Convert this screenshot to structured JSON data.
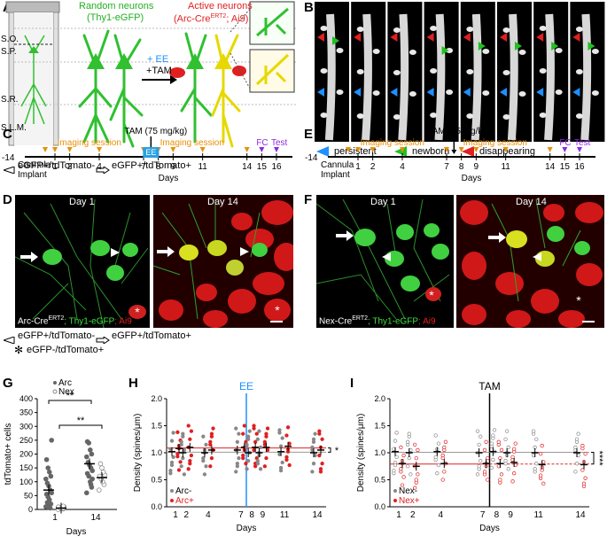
{
  "panelA": {
    "label": "A",
    "layers": [
      "S.O.",
      "S.P.",
      "S.R.",
      "S.L.M."
    ],
    "random_title": "Random neurons",
    "random_sub": "(Thy1-eGFP)",
    "active_title": "Active neurons",
    "active_sub_pre": "(Arc-Cre",
    "active_sub_sup": "ERT2",
    "active_sub_post": "; Ai9)",
    "treat1": "+ EE",
    "treat2": "+TAM",
    "legend_neg": "eGFP+/tdTomato-",
    "legend_pos": "eGFP+/tdTomato+"
  },
  "panelB": {
    "label": "B",
    "days": [
      "Day 1",
      "Day 2",
      "Day 4",
      "Day 7",
      "Day 8",
      "Day 9",
      "Day 11",
      "Day 14"
    ],
    "legend": [
      "persistent",
      "newborn",
      "disappearing"
    ],
    "colors": {
      "persistent": "#1e90ff",
      "newborn": "#22c022",
      "disappearing": "#e02020"
    }
  },
  "panelC": {
    "label": "C",
    "tam": "TAM (75 mg/kg)",
    "start": "-14",
    "cannula1": "Cannula",
    "cannula2": "Implant",
    "imaging1": "Imaging session",
    "imaging2": "Imaging session",
    "ee": "EE",
    "fc": "FC",
    "test": "Test",
    "days_label": "Days",
    "ticks": [
      "1",
      "2",
      "4",
      "7",
      "8",
      "9",
      "11",
      "14",
      "15",
      "16"
    ]
  },
  "panelE": {
    "label": "E",
    "tam": "TAM (75 mg/kg)",
    "start": "-14",
    "cannula1": "Cannula",
    "cannula2": "Implant",
    "imaging1": "Imaging session",
    "imaging2": "Imaging session",
    "fc": "FC",
    "test": "Test",
    "days_label": "Days",
    "ticks": [
      "1",
      "2",
      "4",
      "7",
      "8",
      "9",
      "11",
      "14",
      "15",
      "16"
    ]
  },
  "panelD": {
    "label": "D",
    "day1": "Day 1",
    "day14": "Day 14",
    "caption_pre": "Arc-Cre",
    "caption_sup": "ERT2",
    "caption_g": "; Thy1-eGFP",
    "caption_r": "; Ai9",
    "legend_neg": "eGFP+/tdTomato-",
    "legend_pos": "eGFP+/tdTomato+",
    "legend_red": "eGFP-/tdTomato+"
  },
  "panelF": {
    "label": "F",
    "day1": "Day 1",
    "day14": "Day 14",
    "caption_pre": "Nex-Cre",
    "caption_sup": "ERT2",
    "caption_g": "; Thy1-eGFP",
    "caption_r": "; Ai9"
  },
  "panelG": {
    "label": "G",
    "ylabel": "tdTomato+ cells",
    "xlabel": "Days",
    "legend": [
      "Arc",
      "Nex"
    ],
    "sig1": "**",
    "sig2": "**",
    "yticks": [
      "0",
      "50",
      "100",
      "150",
      "200",
      "250",
      "300",
      "350",
      "400"
    ],
    "xticks": [
      "1",
      "14"
    ]
  },
  "panelH": {
    "label": "H",
    "title": "EE",
    "ylabel": "Density (spines/μm)",
    "xlabel": "Days",
    "legend": [
      "Arc-",
      "Arc+"
    ],
    "sig": "*",
    "yticks": [
      "0.0",
      "0.5",
      "1.0",
      "1.5",
      "2.0"
    ],
    "xticks": [
      "1",
      "2",
      "4",
      "7",
      "8",
      "9",
      "11",
      "14"
    ]
  },
  "panelI": {
    "label": "I",
    "title": "TAM",
    "ylabel": "Density (spines/μm)",
    "xlabel": "Days",
    "legend": [
      "Nex-",
      "Nex+"
    ],
    "sig": "****",
    "yticks": [
      "0.0",
      "0.5",
      "1.0",
      "1.5",
      "2.0"
    ],
    "xticks": [
      "1",
      "2",
      "4",
      "7",
      "8",
      "9",
      "11",
      "14"
    ]
  },
  "chart_data": [
    {
      "type": "scatter",
      "panel": "G",
      "xlabel": "Days",
      "ylabel": "tdTomato+ cells",
      "ylim": [
        0,
        400
      ],
      "categories": [
        "1",
        "14"
      ],
      "series": [
        {
          "name": "Arc",
          "color": "#555555",
          "means": [
            70,
            165
          ],
          "day1": [
            10,
            20,
            35,
            45,
            55,
            60,
            70,
            85,
            95,
            110,
            120,
            135,
            150,
            180,
            250,
            5,
            15,
            25
          ],
          "day14": [
            60,
            80,
            100,
            120,
            130,
            140,
            150,
            160,
            170,
            190,
            200,
            215,
            240,
            245,
            110,
            90
          ]
        },
        {
          "name": "Nex",
          "color": "#999999",
          "means": [
            5,
            115
          ],
          "day1": [
            0,
            2,
            4,
            6,
            8,
            10,
            3,
            5,
            7,
            9,
            12
          ],
          "day14": [
            70,
            90,
            100,
            110,
            120,
            125,
            135,
            150,
            165
          ]
        }
      ]
    },
    {
      "type": "scatter",
      "panel": "H",
      "xlabel": "Days",
      "ylabel": "Density (spines/μm)",
      "ylim": [
        0,
        2.0
      ],
      "x": [
        1,
        2,
        4,
        7,
        8,
        9,
        11,
        14
      ],
      "series": [
        {
          "name": "Arc-",
          "color": "#888888",
          "means": [
            1.02,
            1.0,
            1.0,
            1.05,
            1.0,
            1.0,
            1.02,
            1.0
          ]
        },
        {
          "name": "Arc+",
          "color": "#e02020",
          "means": [
            1.08,
            1.1,
            1.05,
            1.1,
            1.1,
            1.1,
            1.12,
            1.05
          ]
        }
      ],
      "annotation": "EE between day 7 and 8",
      "significance": "*"
    },
    {
      "type": "scatter",
      "panel": "I",
      "xlabel": "Days",
      "ylabel": "Density (spines/μm)",
      "ylim": [
        0,
        2.0
      ],
      "x": [
        1,
        2,
        4,
        7,
        8,
        9,
        11,
        14
      ],
      "series": [
        {
          "name": "Nex-",
          "color": "#888888",
          "means": [
            1.02,
            1.0,
            1.02,
            1.0,
            1.02,
            1.0,
            1.0,
            1.0
          ]
        },
        {
          "name": "Nex+",
          "color": "#e02020",
          "means": [
            0.8,
            0.75,
            0.8,
            0.8,
            0.8,
            0.82,
            0.78,
            0.78
          ]
        }
      ],
      "annotation": "TAM between day 7 and 8",
      "significance": "****"
    }
  ]
}
